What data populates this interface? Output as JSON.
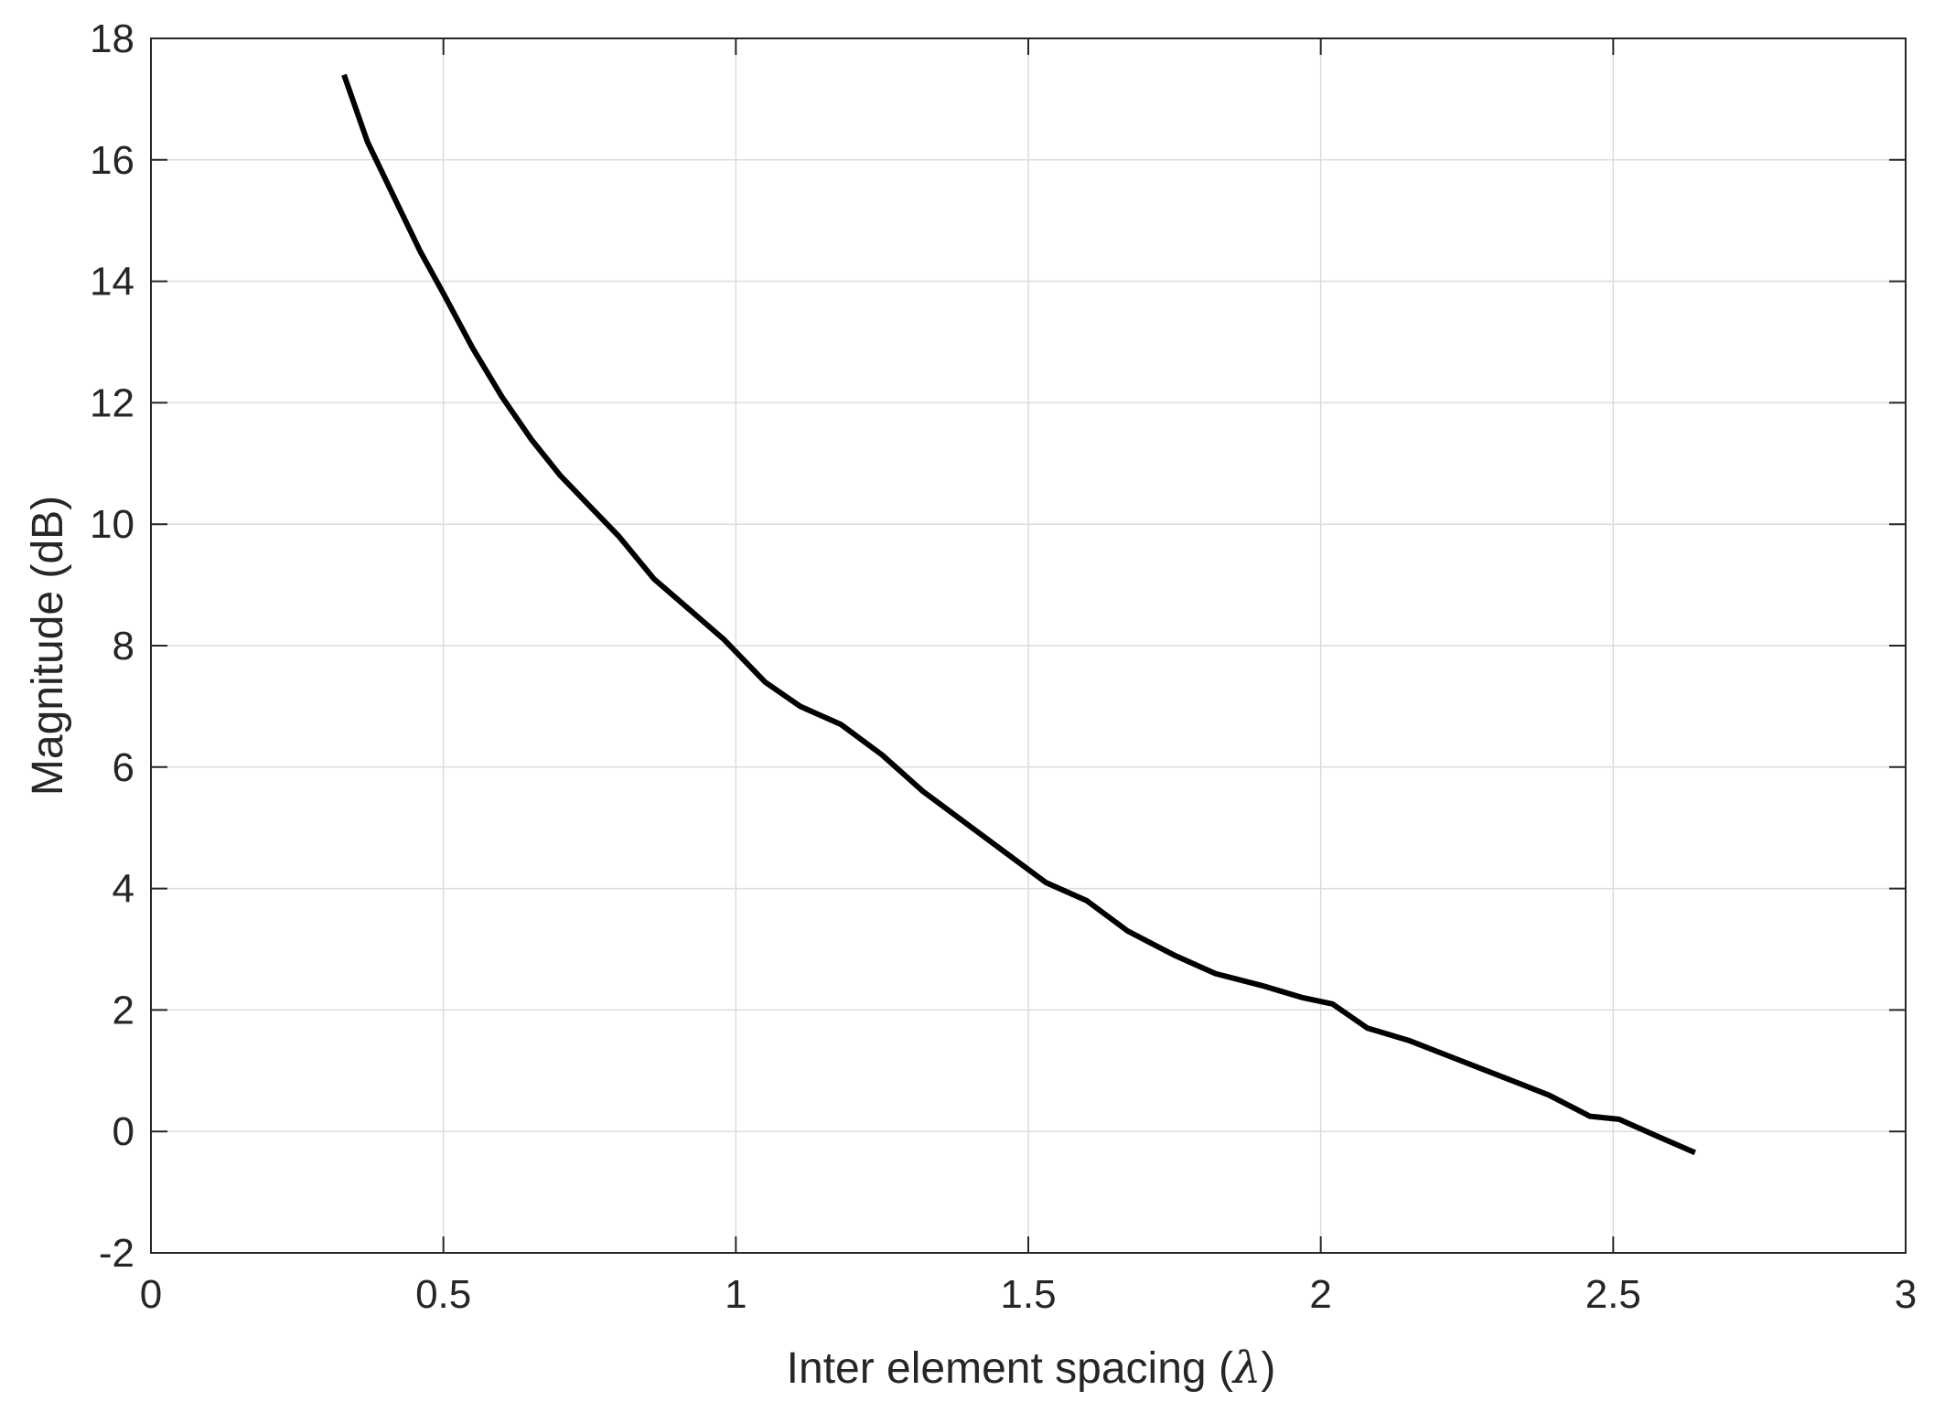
{
  "chart_data": {
    "type": "line",
    "title": "",
    "xlabel": "Inter element spacing (λ)",
    "xlabel_prefix": "Inter element spacing (",
    "xlabel_symbol": "λ",
    "xlabel_suffix": ")",
    "ylabel": "Magnitude (dB)",
    "xlim": [
      0,
      3
    ],
    "ylim": [
      -2,
      18
    ],
    "xticks": [
      0,
      0.5,
      1,
      1.5,
      2,
      2.5,
      3
    ],
    "xtick_labels": [
      "0",
      "0.5",
      "1",
      "1.5",
      "2",
      "2.5",
      "3"
    ],
    "yticks": [
      -2,
      0,
      2,
      4,
      6,
      8,
      10,
      12,
      14,
      16,
      18
    ],
    "ytick_labels": [
      "-2",
      "0",
      "2",
      "4",
      "6",
      "8",
      "10",
      "12",
      "14",
      "16",
      "18"
    ],
    "grid": true,
    "legend": "none",
    "series": [
      {
        "color": "#000000",
        "x": [
          0.33,
          0.37,
          0.42,
          0.46,
          0.5,
          0.55,
          0.6,
          0.65,
          0.7,
          0.75,
          0.8,
          0.86,
          0.92,
          0.98,
          1.05,
          1.11,
          1.18,
          1.25,
          1.32,
          1.39,
          1.46,
          1.53,
          1.6,
          1.67,
          1.75,
          1.82,
          1.9,
          1.97,
          2.02,
          2.08,
          2.15,
          2.23,
          2.31,
          2.39,
          2.46,
          2.51,
          2.58,
          2.64
        ],
        "y": [
          17.4,
          16.3,
          15.3,
          14.5,
          13.8,
          12.9,
          12.1,
          11.4,
          10.8,
          10.3,
          9.8,
          9.1,
          8.6,
          8.1,
          7.4,
          7.0,
          6.7,
          6.2,
          5.6,
          5.1,
          4.6,
          4.1,
          3.8,
          3.3,
          2.9,
          2.6,
          2.4,
          2.2,
          2.1,
          1.7,
          1.5,
          1.2,
          0.9,
          0.6,
          0.25,
          0.2,
          -0.1,
          -0.35
        ]
      }
    ]
  }
}
